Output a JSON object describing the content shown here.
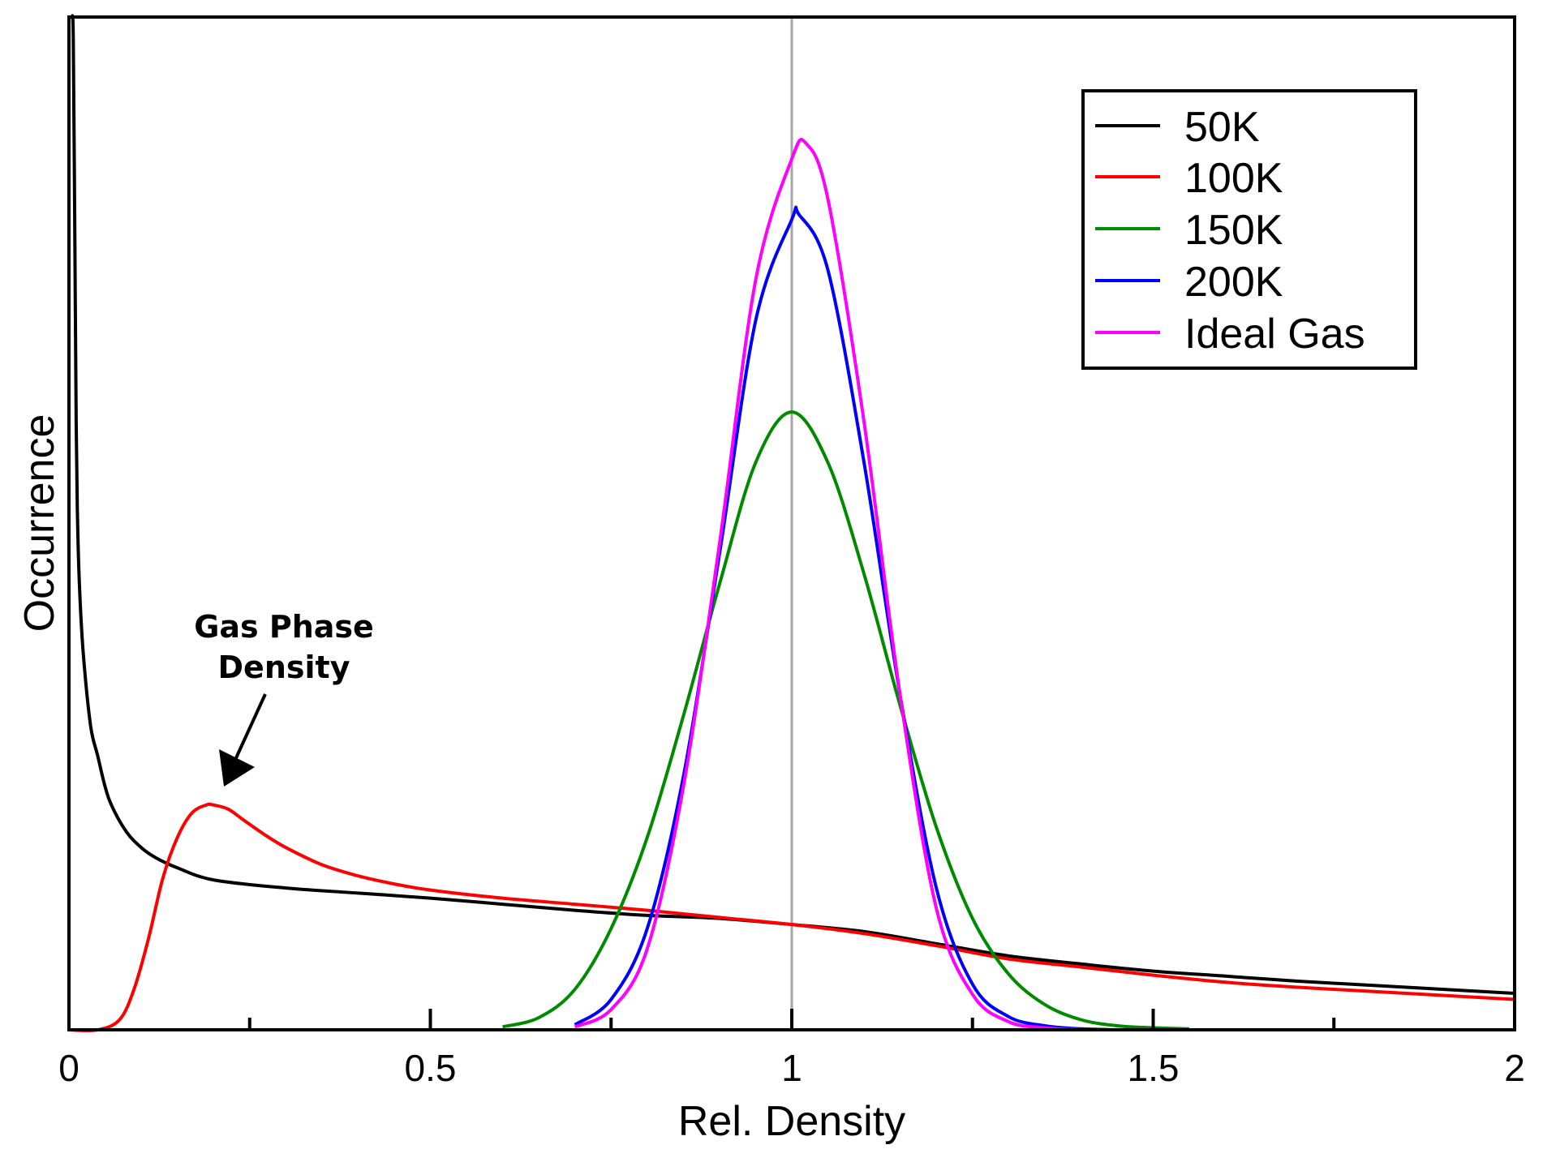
{
  "chart_data": {
    "type": "line",
    "title": "",
    "xlabel": "Rel. Density",
    "ylabel": "Occurrence",
    "xlim": [
      0,
      2
    ],
    "ylim": [
      0,
      1
    ],
    "x_ticks": [
      0,
      0.5,
      1,
      1.5,
      2
    ],
    "x_tick_labels": [
      "0",
      "0.5",
      "1",
      "1.5",
      "2"
    ],
    "x_minor_ticks": [
      0.25,
      0.75,
      1.25,
      1.75
    ],
    "y_tick_labels": [],
    "reference_line": {
      "x": 1.0,
      "color": "#a6a6a6"
    },
    "legend_position": "top-right",
    "annotation": {
      "line1": "Gas Phase",
      "line2": "Density",
      "points_to_series": "100K",
      "points_to_x": 0.2
    },
    "series": [
      {
        "name": "50K",
        "color": "#000000",
        "x": [
          0.004,
          0.006,
          0.008,
          0.01,
          0.012,
          0.015,
          0.02,
          0.03,
          0.04,
          0.05,
          0.06,
          0.08,
          0.1,
          0.12,
          0.15,
          0.2,
          0.3,
          0.4,
          0.5,
          0.6,
          0.7,
          0.8,
          0.9,
          1.0,
          1.1,
          1.2,
          1.3,
          1.4,
          1.5,
          1.6,
          1.7,
          1.8,
          1.9,
          2.0
        ],
        "values": [
          1.0,
          0.98,
          0.8,
          0.6,
          0.5,
          0.43,
          0.37,
          0.3,
          0.27,
          0.24,
          0.22,
          0.195,
          0.18,
          0.17,
          0.16,
          0.148,
          0.14,
          0.135,
          0.13,
          0.124,
          0.118,
          0.113,
          0.11,
          0.104,
          0.097,
          0.085,
          0.073,
          0.065,
          0.058,
          0.053,
          0.048,
          0.044,
          0.04,
          0.036
        ]
      },
      {
        "name": "100K",
        "color": "#ff0000",
        "x": [
          0.0,
          0.04,
          0.07,
          0.09,
          0.11,
          0.13,
          0.15,
          0.17,
          0.19,
          0.2,
          0.22,
          0.24,
          0.27,
          0.3,
          0.35,
          0.4,
          0.45,
          0.5,
          0.6,
          0.7,
          0.8,
          0.9,
          1.0,
          1.1,
          1.2,
          1.3,
          1.4,
          1.5,
          1.6,
          1.7,
          1.8,
          1.9,
          2.0
        ],
        "values": [
          0.0,
          0.0,
          0.01,
          0.04,
          0.09,
          0.15,
          0.19,
          0.214,
          0.222,
          0.222,
          0.218,
          0.208,
          0.193,
          0.18,
          0.163,
          0.152,
          0.144,
          0.138,
          0.13,
          0.124,
          0.118,
          0.111,
          0.104,
          0.095,
          0.083,
          0.07,
          0.062,
          0.054,
          0.047,
          0.042,
          0.038,
          0.034,
          0.03
        ]
      },
      {
        "name": "150K",
        "color": "#008a00",
        "x": [
          0.6,
          0.65,
          0.7,
          0.75,
          0.8,
          0.85,
          0.9,
          0.95,
          1.0,
          1.05,
          1.1,
          1.15,
          1.2,
          1.25,
          1.3,
          1.35,
          1.4,
          1.45,
          1.5,
          1.55
        ],
        "values": [
          0.003,
          0.012,
          0.04,
          0.1,
          0.19,
          0.31,
          0.44,
          0.56,
          0.61,
          0.56,
          0.45,
          0.32,
          0.2,
          0.11,
          0.055,
          0.025,
          0.01,
          0.004,
          0.002,
          0.001
        ]
      },
      {
        "name": "200K",
        "color": "#0000ff",
        "x": [
          0.7,
          0.75,
          0.8,
          0.85,
          0.9,
          0.95,
          1.0,
          1.01,
          1.05,
          1.1,
          1.15,
          1.2,
          1.25,
          1.3,
          1.35,
          1.4,
          1.45
        ],
        "values": [
          0.005,
          0.03,
          0.1,
          0.25,
          0.47,
          0.7,
          0.8,
          0.805,
          0.75,
          0.56,
          0.33,
          0.14,
          0.045,
          0.013,
          0.004,
          0.001,
          0.0
        ]
      },
      {
        "name": "Ideal Gas",
        "color": "#ff00ff",
        "x": [
          0.7,
          0.75,
          0.8,
          0.85,
          0.9,
          0.95,
          1.0,
          1.02,
          1.05,
          1.1,
          1.15,
          1.2,
          1.25,
          1.3,
          1.35,
          1.4
        ],
        "values": [
          0.003,
          0.02,
          0.08,
          0.24,
          0.48,
          0.74,
          0.86,
          0.875,
          0.82,
          0.6,
          0.33,
          0.12,
          0.035,
          0.008,
          0.002,
          0.0
        ]
      }
    ]
  }
}
